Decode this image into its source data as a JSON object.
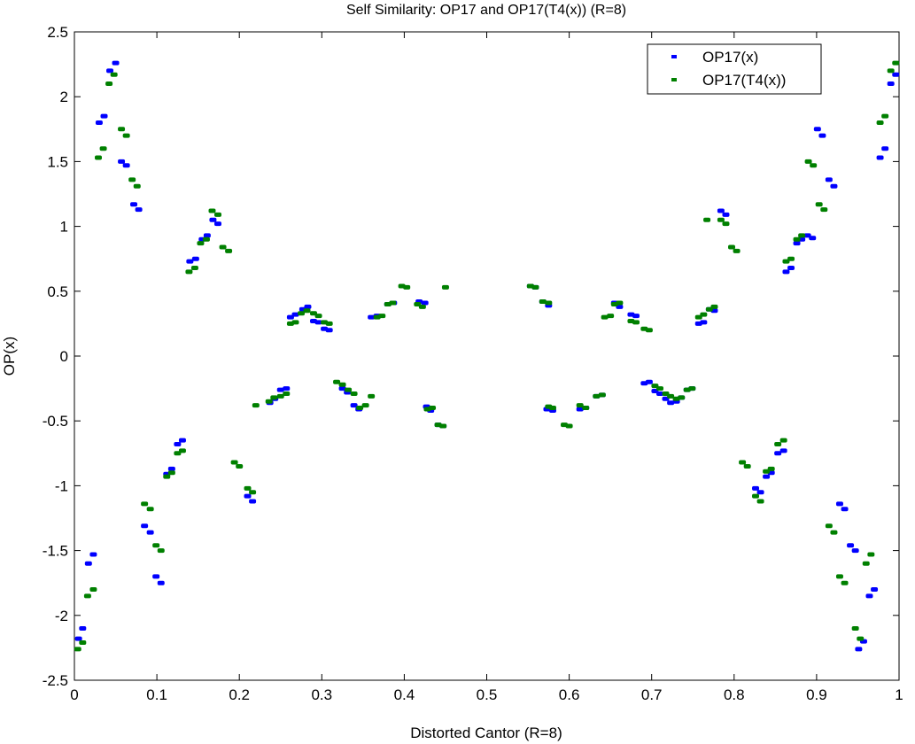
{
  "chart_data": {
    "type": "scatter",
    "title": "Self Similarity: OP17 and OP17(T4(x)) (R=8)",
    "xlabel": "Distorted Cantor (R=8)",
    "ylabel": "OP(x)",
    "xlim": [
      0,
      1
    ],
    "ylim": [
      -2.5,
      2.5
    ],
    "xticks": [
      0,
      0.1,
      0.2,
      0.3,
      0.4,
      0.5,
      0.6,
      0.7,
      0.8,
      0.9,
      1
    ],
    "xtick_labels": [
      "0",
      "0.1",
      "0.2",
      "0.3",
      "0.4",
      "0.5",
      "0.6",
      "0.7",
      "0.8",
      "0.9",
      "1"
    ],
    "yticks": [
      -2.5,
      -2,
      -1.5,
      -1,
      -0.5,
      0,
      0.5,
      1,
      1.5,
      2,
      2.5
    ],
    "ytick_labels": [
      "-2.5",
      "-2",
      "-1.5",
      "-1",
      "-0.5",
      "0",
      "0.5",
      "1",
      "1.5",
      "2",
      "2.5"
    ],
    "grid": false,
    "legend": "top-right",
    "series": [
      {
        "name": "OP17(x)",
        "color": "#0000ff",
        "points": [
          [
            0.005,
            -2.18
          ],
          [
            0.01,
            -2.1
          ],
          [
            0.017,
            -1.6
          ],
          [
            0.023,
            -1.53
          ],
          [
            0.03,
            1.8
          ],
          [
            0.036,
            1.85
          ],
          [
            0.043,
            2.2
          ],
          [
            0.05,
            2.26
          ],
          [
            0.057,
            1.5
          ],
          [
            0.063,
            1.47
          ],
          [
            0.072,
            1.17
          ],
          [
            0.078,
            1.13
          ],
          [
            0.085,
            -1.31
          ],
          [
            0.092,
            -1.36
          ],
          [
            0.099,
            -1.7
          ],
          [
            0.105,
            -1.75
          ],
          [
            0.112,
            -0.91
          ],
          [
            0.118,
            -0.87
          ],
          [
            0.125,
            -0.68
          ],
          [
            0.131,
            -0.65
          ],
          [
            0.14,
            0.73
          ],
          [
            0.147,
            0.75
          ],
          [
            0.155,
            0.9
          ],
          [
            0.161,
            0.93
          ],
          [
            0.168,
            1.05
          ],
          [
            0.174,
            1.02
          ],
          [
            0.21,
            -1.08
          ],
          [
            0.216,
            -1.12
          ],
          [
            0.237,
            -0.36
          ],
          [
            0.243,
            -0.33
          ],
          [
            0.25,
            -0.26
          ],
          [
            0.257,
            -0.25
          ],
          [
            0.262,
            0.3
          ],
          [
            0.268,
            0.32
          ],
          [
            0.277,
            0.36
          ],
          [
            0.283,
            0.38
          ],
          [
            0.29,
            0.27
          ],
          [
            0.296,
            0.26
          ],
          [
            0.303,
            0.21
          ],
          [
            0.309,
            0.2
          ],
          [
            0.325,
            -0.25
          ],
          [
            0.331,
            -0.28
          ],
          [
            0.339,
            -0.38
          ],
          [
            0.345,
            -0.41
          ],
          [
            0.36,
            0.3
          ],
          [
            0.367,
            0.31
          ],
          [
            0.38,
            0.4
          ],
          [
            0.387,
            0.41
          ],
          [
            0.418,
            0.42
          ],
          [
            0.425,
            0.41
          ],
          [
            0.427,
            -0.39
          ],
          [
            0.432,
            -0.42
          ],
          [
            0.441,
            -0.53
          ],
          [
            0.447,
            -0.54
          ],
          [
            0.553,
            0.54
          ],
          [
            0.559,
            0.53
          ],
          [
            0.568,
            0.42
          ],
          [
            0.575,
            0.39
          ],
          [
            0.573,
            -0.41
          ],
          [
            0.58,
            -0.42
          ],
          [
            0.613,
            -0.41
          ],
          [
            0.62,
            -0.4
          ],
          [
            0.633,
            -0.31
          ],
          [
            0.64,
            -0.3
          ],
          [
            0.655,
            0.41
          ],
          [
            0.661,
            0.38
          ],
          [
            0.675,
            0.32
          ],
          [
            0.681,
            0.31
          ],
          [
            0.691,
            -0.21
          ],
          [
            0.697,
            -0.2
          ],
          [
            0.704,
            -0.27
          ],
          [
            0.71,
            -0.29
          ],
          [
            0.717,
            -0.33
          ],
          [
            0.723,
            -0.36
          ],
          [
            0.73,
            -0.35
          ],
          [
            0.736,
            -0.32
          ],
          [
            0.743,
            -0.26
          ],
          [
            0.749,
            -0.25
          ],
          [
            0.757,
            0.25
          ],
          [
            0.763,
            0.26
          ],
          [
            0.77,
            0.36
          ],
          [
            0.776,
            0.35
          ],
          [
            0.784,
            1.12
          ],
          [
            0.79,
            1.09
          ],
          [
            0.826,
            -1.02
          ],
          [
            0.832,
            -1.05
          ],
          [
            0.839,
            -0.93
          ],
          [
            0.845,
            -0.9
          ],
          [
            0.853,
            -0.75
          ],
          [
            0.86,
            -0.73
          ],
          [
            0.863,
            0.65
          ],
          [
            0.869,
            0.68
          ],
          [
            0.876,
            0.87
          ],
          [
            0.882,
            0.9
          ],
          [
            0.889,
            0.93
          ],
          [
            0.895,
            0.91
          ],
          [
            0.901,
            1.75
          ],
          [
            0.907,
            1.7
          ],
          [
            0.915,
            1.36
          ],
          [
            0.921,
            1.31
          ],
          [
            0.928,
            -1.14
          ],
          [
            0.934,
            -1.18
          ],
          [
            0.941,
            -1.46
          ],
          [
            0.947,
            -1.5
          ],
          [
            0.951,
            -2.26
          ],
          [
            0.957,
            -2.2
          ],
          [
            0.964,
            -1.85
          ],
          [
            0.97,
            -1.8
          ],
          [
            0.977,
            1.53
          ],
          [
            0.983,
            1.6
          ],
          [
            0.99,
            2.1
          ],
          [
            0.996,
            2.17
          ]
        ]
      },
      {
        "name": "OP17(T4(x))",
        "color": "#008000",
        "points": [
          [
            0.004,
            -2.26
          ],
          [
            0.01,
            -2.21
          ],
          [
            0.016,
            -1.85
          ],
          [
            0.023,
            -1.8
          ],
          [
            0.029,
            1.53
          ],
          [
            0.035,
            1.6
          ],
          [
            0.042,
            2.1
          ],
          [
            0.048,
            2.17
          ],
          [
            0.057,
            1.75
          ],
          [
            0.063,
            1.7
          ],
          [
            0.07,
            1.36
          ],
          [
            0.076,
            1.31
          ],
          [
            0.085,
            -1.14
          ],
          [
            0.092,
            -1.18
          ],
          [
            0.099,
            -1.46
          ],
          [
            0.105,
            -1.5
          ],
          [
            0.112,
            -0.93
          ],
          [
            0.118,
            -0.9
          ],
          [
            0.125,
            -0.75
          ],
          [
            0.131,
            -0.73
          ],
          [
            0.139,
            0.65
          ],
          [
            0.146,
            0.68
          ],
          [
            0.153,
            0.87
          ],
          [
            0.16,
            0.9
          ],
          [
            0.167,
            1.12
          ],
          [
            0.174,
            1.09
          ],
          [
            0.18,
            0.84
          ],
          [
            0.187,
            0.81
          ],
          [
            0.194,
            -0.82
          ],
          [
            0.2,
            -0.85
          ],
          [
            0.21,
            -1.02
          ],
          [
            0.216,
            -1.05
          ],
          [
            0.22,
            -0.38
          ],
          [
            0.236,
            -0.35
          ],
          [
            0.242,
            -0.32
          ],
          [
            0.25,
            -0.31
          ],
          [
            0.257,
            -0.29
          ],
          [
            0.262,
            0.25
          ],
          [
            0.268,
            0.26
          ],
          [
            0.275,
            0.33
          ],
          [
            0.282,
            0.35
          ],
          [
            0.29,
            0.33
          ],
          [
            0.296,
            0.31
          ],
          [
            0.303,
            0.26
          ],
          [
            0.309,
            0.25
          ],
          [
            0.318,
            -0.2
          ],
          [
            0.325,
            -0.22
          ],
          [
            0.332,
            -0.26
          ],
          [
            0.339,
            -0.29
          ],
          [
            0.346,
            -0.4
          ],
          [
            0.353,
            -0.38
          ],
          [
            0.36,
            -0.31
          ],
          [
            0.367,
            0.3
          ],
          [
            0.373,
            0.31
          ],
          [
            0.38,
            0.4
          ],
          [
            0.386,
            0.41
          ],
          [
            0.397,
            0.54
          ],
          [
            0.403,
            0.53
          ],
          [
            0.416,
            0.4
          ],
          [
            0.422,
            0.38
          ],
          [
            0.428,
            -0.41
          ],
          [
            0.434,
            -0.4
          ],
          [
            0.441,
            -0.53
          ],
          [
            0.447,
            -0.54
          ],
          [
            0.45,
            0.53
          ],
          [
            0.553,
            0.54
          ],
          [
            0.559,
            0.53
          ],
          [
            0.568,
            0.42
          ],
          [
            0.575,
            0.41
          ],
          [
            0.575,
            -0.39
          ],
          [
            0.58,
            -0.4
          ],
          [
            0.594,
            -0.53
          ],
          [
            0.6,
            -0.54
          ],
          [
            0.613,
            -0.38
          ],
          [
            0.62,
            -0.4
          ],
          [
            0.633,
            -0.31
          ],
          [
            0.64,
            -0.3
          ],
          [
            0.643,
            0.3
          ],
          [
            0.65,
            0.31
          ],
          [
            0.655,
            0.4
          ],
          [
            0.661,
            0.41
          ],
          [
            0.675,
            0.27
          ],
          [
            0.681,
            0.26
          ],
          [
            0.691,
            0.21
          ],
          [
            0.697,
            0.2
          ],
          [
            0.704,
            -0.23
          ],
          [
            0.71,
            -0.25
          ],
          [
            0.717,
            -0.29
          ],
          [
            0.723,
            -0.31
          ],
          [
            0.73,
            -0.33
          ],
          [
            0.736,
            -0.32
          ],
          [
            0.743,
            -0.26
          ],
          [
            0.749,
            -0.25
          ],
          [
            0.757,
            0.3
          ],
          [
            0.763,
            0.32
          ],
          [
            0.77,
            0.36
          ],
          [
            0.776,
            0.38
          ],
          [
            0.767,
            1.05
          ],
          [
            0.784,
            1.05
          ],
          [
            0.79,
            1.02
          ],
          [
            0.797,
            0.84
          ],
          [
            0.803,
            0.81
          ],
          [
            0.81,
            -0.82
          ],
          [
            0.816,
            -0.85
          ],
          [
            0.826,
            -1.08
          ],
          [
            0.832,
            -1.12
          ],
          [
            0.839,
            -0.89
          ],
          [
            0.845,
            -0.87
          ],
          [
            0.853,
            -0.68
          ],
          [
            0.86,
            -0.65
          ],
          [
            0.863,
            0.73
          ],
          [
            0.869,
            0.75
          ],
          [
            0.876,
            0.9
          ],
          [
            0.882,
            0.93
          ],
          [
            0.89,
            1.5
          ],
          [
            0.896,
            1.47
          ],
          [
            0.903,
            1.17
          ],
          [
            0.909,
            1.13
          ],
          [
            0.915,
            -1.31
          ],
          [
            0.921,
            -1.36
          ],
          [
            0.928,
            -1.7
          ],
          [
            0.934,
            -1.75
          ],
          [
            0.947,
            -2.1
          ],
          [
            0.953,
            -2.18
          ],
          [
            0.96,
            -1.6
          ],
          [
            0.966,
            -1.53
          ],
          [
            0.977,
            1.8
          ],
          [
            0.983,
            1.85
          ],
          [
            0.99,
            2.2
          ],
          [
            0.996,
            2.26
          ]
        ]
      }
    ]
  }
}
